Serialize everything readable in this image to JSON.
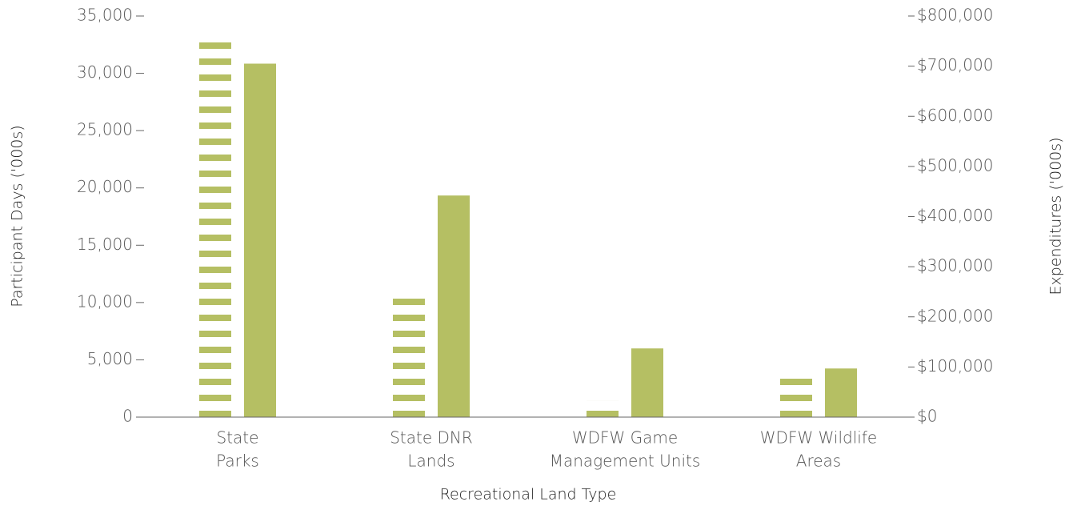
{
  "chart_data": {
    "type": "bar",
    "xlabel": "Recreational Land Type",
    "ylabel": "Participant Days ('000s)",
    "y2label": "Expenditures ('000s)",
    "categories": [
      [
        "State",
        "Parks"
      ],
      [
        "State DNR",
        "Lands"
      ],
      [
        "WDFW Game",
        "Management Units"
      ],
      [
        "WDFW Wildlife",
        "Areas"
      ]
    ],
    "series": [
      {
        "color": "#b5bf63",
        "pattern": "stripes",
        "values": [
          33000,
          11000,
          1400,
          4100
        ]
      },
      {
        "color": "#b5bf63",
        "axis": "y2",
        "values": [
          705000,
          442000,
          137000,
          97000
        ]
      }
    ],
    "ylim": [
      0,
      35000
    ],
    "yticks": [
      0,
      {
        "value": 5000,
        "label": "5,000"
      },
      {
        "value": 10000,
        "label": "10,000"
      },
      {
        "value": 15000,
        "label": "15,000"
      },
      {
        "value": 20000,
        "label": "20,000"
      },
      {
        "value": 25000,
        "label": "25,000"
      },
      {
        "value": 30000,
        "label": "30,000"
      },
      {
        "value": 35000,
        "label": "35,000"
      }
    ],
    "y2lim": [
      0,
      800000
    ],
    "y2ticks": [
      {
        "value": 0,
        "label": "$0"
      },
      {
        "value": 100000,
        "label": "$100,000"
      },
      {
        "value": 200000,
        "label": "$200,000"
      },
      {
        "value": 300000,
        "label": "$300,000"
      },
      {
        "value": 400000,
        "label": "$400,000"
      },
      {
        "value": 500000,
        "label": "$500,000"
      },
      {
        "value": 600000,
        "label": "$600,000"
      },
      {
        "value": 700000,
        "label": "$700,000"
      },
      {
        "value": 800000,
        "label": "$800,000"
      }
    ],
    "grid": false
  }
}
